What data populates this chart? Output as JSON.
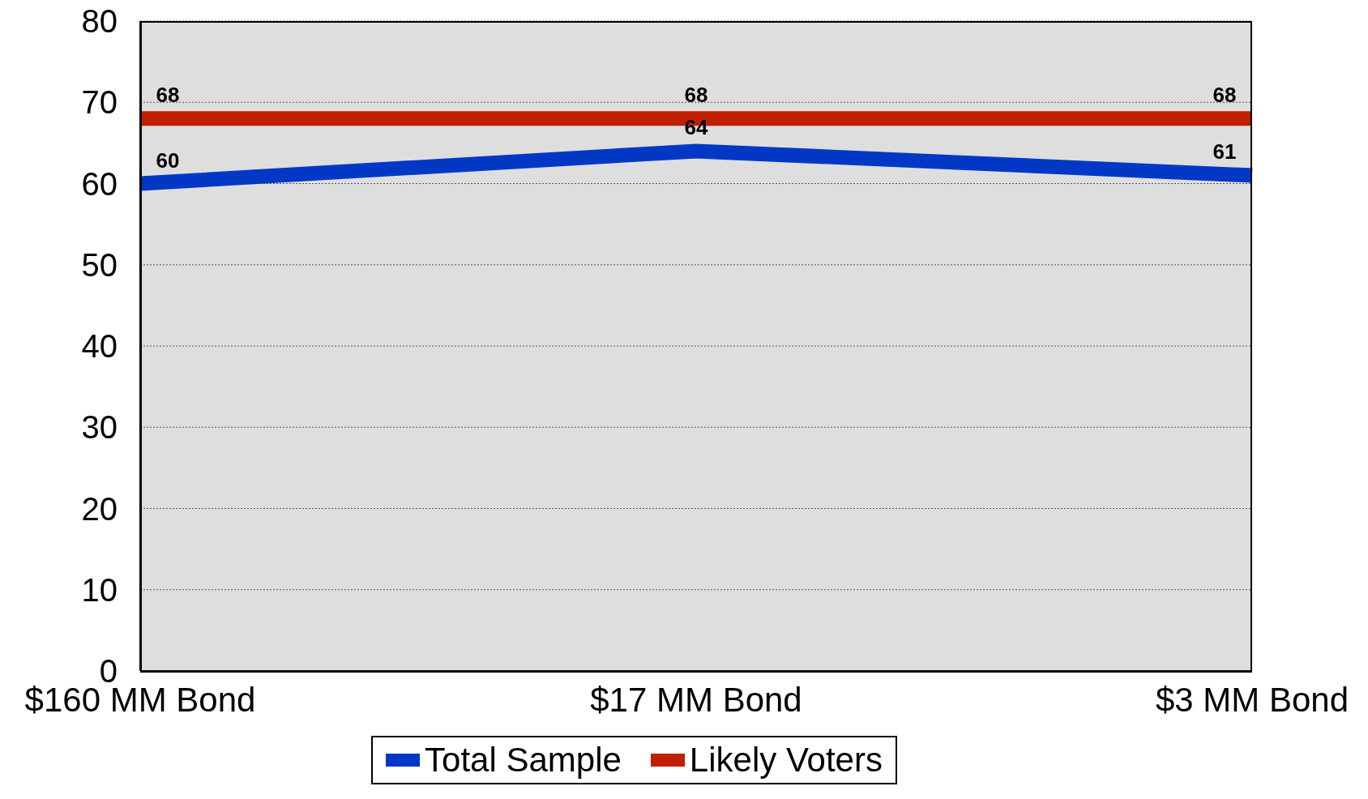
{
  "chart_data": {
    "type": "line",
    "categories": [
      "$160 MM Bond",
      "$17 MM Bond",
      "$3 MM Bond"
    ],
    "series": [
      {
        "name": "Total Sample",
        "color": "#0038c6",
        "values": [
          60,
          64,
          61
        ]
      },
      {
        "name": "Likely Voters",
        "color": "#c01f00",
        "values": [
          68,
          68,
          68
        ]
      }
    ],
    "ylim": [
      0,
      80
    ],
    "yticks": [
      0,
      10,
      20,
      30,
      40,
      50,
      60,
      70,
      80
    ],
    "grid": "y",
    "legend": "bottom",
    "data_labels": true,
    "marker": "none",
    "line_style": "solid"
  }
}
